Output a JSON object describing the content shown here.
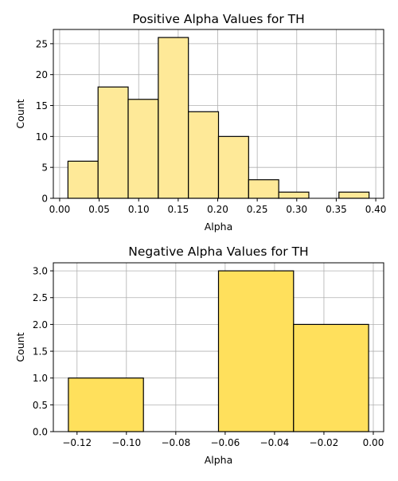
{
  "chart_data": [
    {
      "type": "bar",
      "title": "Positive Alpha Values for TH",
      "xlabel": "Alpha",
      "ylabel": "Count",
      "bin_edges": [
        0.0105,
        0.0486,
        0.0867,
        0.1248,
        0.1629,
        0.201,
        0.2391,
        0.2772,
        0.3153,
        0.3534,
        0.3915
      ],
      "values": [
        6,
        18,
        16,
        26,
        14,
        10,
        3,
        1,
        0,
        1
      ],
      "xlim": [
        -0.008,
        0.41
      ],
      "ylim": [
        0,
        27.3
      ],
      "xticks": [
        0.0,
        0.05,
        0.1,
        0.15,
        0.2,
        0.25,
        0.3,
        0.35,
        0.4
      ],
      "xtick_labels": [
        "0.00",
        "0.05",
        "0.10",
        "0.15",
        "0.20",
        "0.25",
        "0.30",
        "0.35",
        "0.40"
      ],
      "yticks": [
        0,
        5,
        10,
        15,
        20,
        25
      ],
      "ytick_labels": [
        "0",
        "5",
        "10",
        "15",
        "20",
        "25"
      ],
      "color": "#fee998",
      "grid": true
    },
    {
      "type": "bar",
      "title": "Negative Alpha Values for TH",
      "xlabel": "Alpha",
      "ylabel": "Count",
      "bin_edges": [
        -0.1235,
        -0.0931,
        -0.0627,
        -0.0323,
        -0.0019
      ],
      "values": [
        1,
        0,
        3,
        2
      ],
      "xlim": [
        -0.1296,
        0.0042
      ],
      "ylim": [
        0,
        3.15
      ],
      "xticks": [
        -0.12,
        -0.1,
        -0.08,
        -0.06,
        -0.04,
        -0.02,
        0.0
      ],
      "xtick_labels": [
        "−0.12",
        "−0.10",
        "−0.08",
        "−0.06",
        "−0.04",
        "−0.02",
        "0.00"
      ],
      "yticks": [
        0,
        0.5,
        1,
        1.5,
        2,
        2.5,
        3
      ],
      "ytick_labels": [
        "0.0",
        "0.5",
        "1.0",
        "1.5",
        "2.0",
        "2.5",
        "3.0"
      ],
      "color": "#ffe05c",
      "grid": true
    }
  ]
}
